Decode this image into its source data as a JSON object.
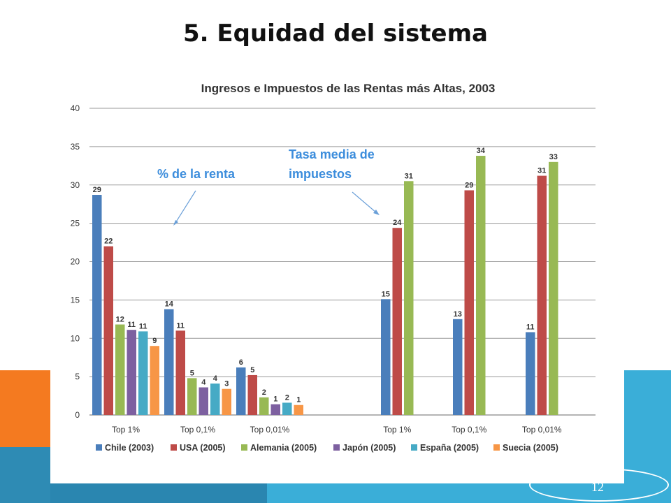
{
  "slide": {
    "title": "5. Equidad del sistema",
    "page_number": "12"
  },
  "annotations": [
    {
      "text_lines": [
        "% de la renta"
      ],
      "color": "#3c8ddc"
    },
    {
      "text_lines": [
        "Tasa media de",
        "impuestos"
      ],
      "color": "#3c8ddc"
    }
  ],
  "chart_data": {
    "type": "bar",
    "title": "Ingresos e Impuestos de las Rentas más Altas, 2003",
    "xlabel": "",
    "ylabel": "",
    "ylim": [
      0,
      40
    ],
    "yticks": [
      0,
      5,
      10,
      15,
      20,
      25,
      30,
      35,
      40
    ],
    "grid": true,
    "legend_position": "bottom",
    "groups": [
      {
        "label": "Top 1%",
        "section": "% de la renta",
        "values": [
          28.7,
          22,
          11.8,
          11.1,
          10.9,
          9
        ]
      },
      {
        "label": "Top 0,1%",
        "section": "% de la renta",
        "values": [
          13.8,
          11,
          4.8,
          3.6,
          4.1,
          3.4
        ]
      },
      {
        "label": "Top 0,01%",
        "section": "% de la renta",
        "values": [
          6.2,
          5.2,
          2.3,
          1.4,
          1.6,
          1.3
        ]
      },
      {
        "label": "Top 1%",
        "section": "Tasa media de impuestos",
        "values": [
          15.1,
          24.4,
          30.5,
          null,
          null,
          null
        ]
      },
      {
        "label": "Top 0,1%",
        "section": "Tasa media de impuestos",
        "values": [
          12.5,
          29.3,
          33.8,
          null,
          null,
          null
        ]
      },
      {
        "label": "Top 0,01%",
        "section": "Tasa media de impuestos",
        "values": [
          10.8,
          31.2,
          33,
          null,
          null,
          null
        ]
      }
    ],
    "data_labels": [
      [
        "29",
        "22",
        "12",
        "11",
        "11",
        "9"
      ],
      [
        "14",
        "11",
        "5",
        "4",
        "4",
        "3"
      ],
      [
        "6",
        "5",
        "2",
        "1",
        "2",
        "1"
      ],
      [
        "15",
        "24",
        "31",
        "",
        "",
        ""
      ],
      [
        "13",
        "29",
        "34",
        "",
        "",
        ""
      ],
      [
        "11",
        "31",
        "33",
        "",
        "",
        ""
      ]
    ],
    "series": [
      {
        "name": "Chile (2003)",
        "color": "#4a7ebb"
      },
      {
        "name": "USA (2005)",
        "color": "#be4b48"
      },
      {
        "name": "Alemania (2005)",
        "color": "#98b954"
      },
      {
        "name": "Japón (2005)",
        "color": "#7d60a0"
      },
      {
        "name": "España (2005)",
        "color": "#46aac5"
      },
      {
        "name": "Suecia (2005)",
        "color": "#f79646"
      }
    ]
  }
}
